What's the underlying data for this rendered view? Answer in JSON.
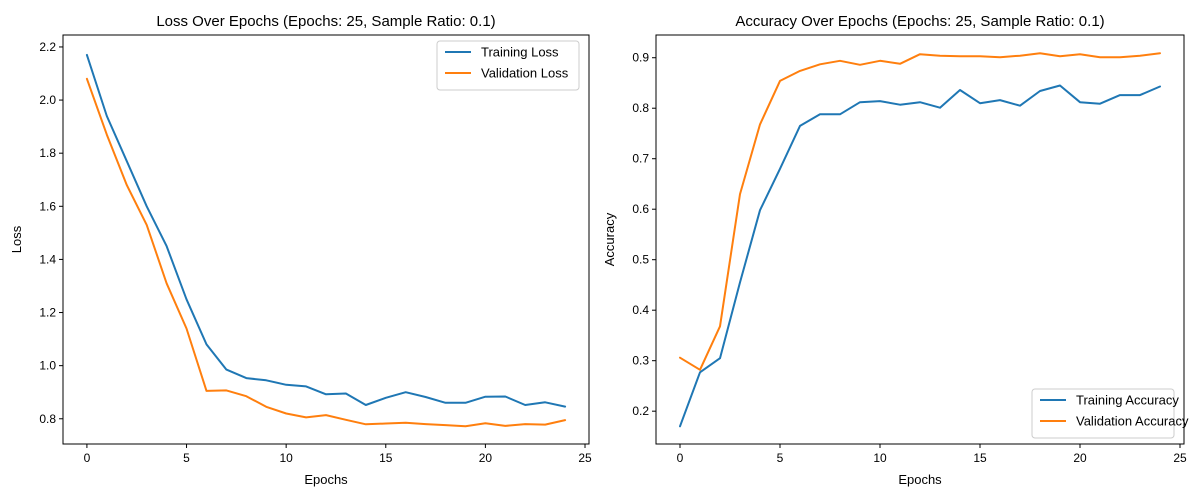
{
  "chart_data": [
    {
      "type": "line",
      "title": "Loss Over Epochs (Epochs: 25, Sample Ratio: 0.1)",
      "xlabel": "Epochs",
      "ylabel": "Loss",
      "xlim": [
        -1.2,
        25.2
      ],
      "ylim": [
        0.705,
        2.245
      ],
      "xticks": [
        0,
        5,
        10,
        15,
        20,
        25
      ],
      "yticks": [
        0.8,
        1.0,
        1.2,
        1.4,
        1.6,
        1.8,
        2.0,
        2.2
      ],
      "ytick_labels": [
        "0.8",
        "1.0",
        "1.2",
        "1.4",
        "1.6",
        "1.8",
        "2.0",
        "2.2"
      ],
      "legend_position": "upper-right",
      "grid": false,
      "x": [
        0,
        1,
        2,
        3,
        4,
        5,
        6,
        7,
        8,
        9,
        10,
        11,
        12,
        13,
        14,
        15,
        16,
        17,
        18,
        19,
        20,
        21,
        22,
        23,
        24
      ],
      "series": [
        {
          "name": "Training Loss",
          "color": "#1f77b4",
          "values": [
            2.17,
            1.94,
            1.77,
            1.6,
            1.45,
            1.25,
            1.08,
            0.985,
            0.953,
            0.945,
            0.928,
            0.922,
            0.892,
            0.895,
            0.852,
            0.879,
            0.9,
            0.882,
            0.86,
            0.86,
            0.883,
            0.884,
            0.852,
            0.862,
            0.846
          ]
        },
        {
          "name": "Validation Loss",
          "color": "#ff7f0e",
          "values": [
            2.08,
            1.87,
            1.68,
            1.53,
            1.31,
            1.14,
            0.905,
            0.907,
            0.885,
            0.845,
            0.82,
            0.805,
            0.814,
            0.796,
            0.779,
            0.782,
            0.785,
            0.78,
            0.776,
            0.772,
            0.783,
            0.773,
            0.78,
            0.778,
            0.795
          ]
        }
      ]
    },
    {
      "type": "line",
      "title": "Accuracy Over Epochs (Epochs: 25, Sample Ratio: 0.1)",
      "xlabel": "Epochs",
      "ylabel": "Accuracy",
      "xlim": [
        -1.2,
        25.2
      ],
      "ylim": [
        0.135,
        0.945
      ],
      "xticks": [
        0,
        5,
        10,
        15,
        20,
        25
      ],
      "yticks": [
        0.2,
        0.3,
        0.4,
        0.5,
        0.6,
        0.7,
        0.8,
        0.9
      ],
      "ytick_labels": [
        "0.2",
        "0.3",
        "0.4",
        "0.5",
        "0.6",
        "0.7",
        "0.8",
        "0.9"
      ],
      "legend_position": "lower-right",
      "grid": false,
      "x": [
        0,
        1,
        2,
        3,
        4,
        5,
        6,
        7,
        8,
        9,
        10,
        11,
        12,
        13,
        14,
        15,
        16,
        17,
        18,
        19,
        20,
        21,
        22,
        23,
        24
      ],
      "series": [
        {
          "name": "Training Accuracy",
          "color": "#1f77b4",
          "values": [
            0.17,
            0.277,
            0.305,
            0.455,
            0.598,
            0.68,
            0.765,
            0.788,
            0.788,
            0.812,
            0.814,
            0.807,
            0.812,
            0.801,
            0.836,
            0.81,
            0.816,
            0.805,
            0.834,
            0.845,
            0.812,
            0.809,
            0.826,
            0.826,
            0.843
          ]
        },
        {
          "name": "Validation Accuracy",
          "color": "#ff7f0e",
          "values": [
            0.306,
            0.282,
            0.368,
            0.63,
            0.768,
            0.854,
            0.874,
            0.887,
            0.894,
            0.886,
            0.894,
            0.888,
            0.907,
            0.904,
            0.903,
            0.903,
            0.901,
            0.904,
            0.909,
            0.903,
            0.907,
            0.901,
            0.901,
            0.904,
            0.909
          ]
        }
      ]
    }
  ]
}
